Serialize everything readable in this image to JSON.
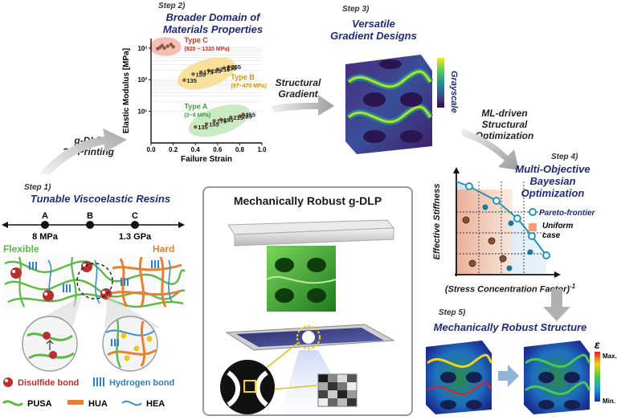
{
  "step1": {
    "step": "Step 1)",
    "title": "Tunable Viscoelastic Resins",
    "markers": [
      {
        "letter": "A",
        "value": "8 MPa"
      },
      {
        "letter": "B",
        "value": ""
      },
      {
        "letter": "C",
        "value": "1.3 GPa"
      }
    ],
    "flexible": "Flexible",
    "hard": "Hard",
    "legend": {
      "disulfide": "Disulfide bond",
      "hydrogen": "Hydrogen bond",
      "pusa": "PUSA",
      "hua": "HUA",
      "hea": "HEA"
    },
    "colors": {
      "pusa": "#5cb944",
      "hua": "#e8802f",
      "hea": "#3a8fc8",
      "disulfide": "#b8312f",
      "hydrogen": "#2f7fc8"
    }
  },
  "gdlp_print": {
    "line1": "g-DLP",
    "line2": "3D Printing"
  },
  "step2": {
    "step": "Step 2)",
    "title_line1": "Broader Domain of",
    "title_line2": "Materials Properties"
  },
  "chart_data": {
    "type": "scatter",
    "xlabel": "Failure Strain",
    "ylabel": "Elastic Modulus [MPa]",
    "xlim": [
      0.0,
      1.0
    ],
    "ylim": [
      1,
      2000
    ],
    "yscale": "log",
    "xticks": [
      "0.0",
      "0.2",
      "0.4",
      "0.6",
      "0.8",
      "1.0"
    ],
    "yticks": [
      "10¹",
      "10²",
      "10³"
    ],
    "groups": [
      {
        "name": "Type C",
        "range": "(920 ~ 1320 MPa)",
        "color": "#c0392b",
        "points": [
          [
            0.08,
            1050
          ],
          [
            0.1,
            1200
          ],
          [
            0.12,
            1000
          ],
          [
            0.15,
            1150
          ],
          [
            0.18,
            1300
          ],
          [
            0.2,
            1100
          ],
          [
            0.06,
            950
          ]
        ]
      },
      {
        "name": "Type B",
        "range": "(97~470 MPa)",
        "color": "#c8961e",
        "points": [
          [
            0.3,
            97
          ],
          [
            0.38,
            150
          ],
          [
            0.45,
            175
          ],
          [
            0.52,
            195
          ],
          [
            0.6,
            215
          ],
          [
            0.66,
            235
          ],
          [
            0.7,
            255
          ]
        ],
        "labels": [
          "135",
          "155",
          "175",
          "195",
          "215",
          "235",
          "255"
        ]
      },
      {
        "name": "Type A",
        "range": "(2~8 MPa)",
        "color": "#3f9a3f",
        "points": [
          [
            0.4,
            3.2
          ],
          [
            0.5,
            4
          ],
          [
            0.57,
            5
          ],
          [
            0.63,
            5.5
          ],
          [
            0.72,
            6.5
          ],
          [
            0.8,
            7
          ],
          [
            0.83,
            8
          ]
        ],
        "labels": [
          "135",
          "155",
          "175",
          "195",
          "215",
          "235",
          "255"
        ]
      }
    ]
  },
  "structural_gradient": {
    "line1": "Structural",
    "line2": "Gradient"
  },
  "step3": {
    "step": "Step 3)",
    "title_line1": "Versatile",
    "title_line2": "Gradient Designs",
    "scale": "Grayscale"
  },
  "ml": {
    "line1": "ML-driven",
    "line2": "Structural",
    "line3": "Optimization"
  },
  "step4": {
    "step": "Step 4)",
    "title_line1": "Multi-Objective",
    "title_line2": "Bayesian",
    "title_line3": "Optimization",
    "ylabel": "Effective Stiffness",
    "xlabel": "(Stress Concentration Factor)",
    "xlabel_sup": "-1",
    "legend_pareto": "Pareto-frontier",
    "legend_uniform_1": "Uniform",
    "legend_uniform_2": "case"
  },
  "step5": {
    "step": "Step 5)",
    "title": "Mechanically Robust Structure",
    "eps": "ε",
    "max": "Max.",
    "min": "Min."
  },
  "center": {
    "title": "Mechanically Robust g-DLP"
  }
}
